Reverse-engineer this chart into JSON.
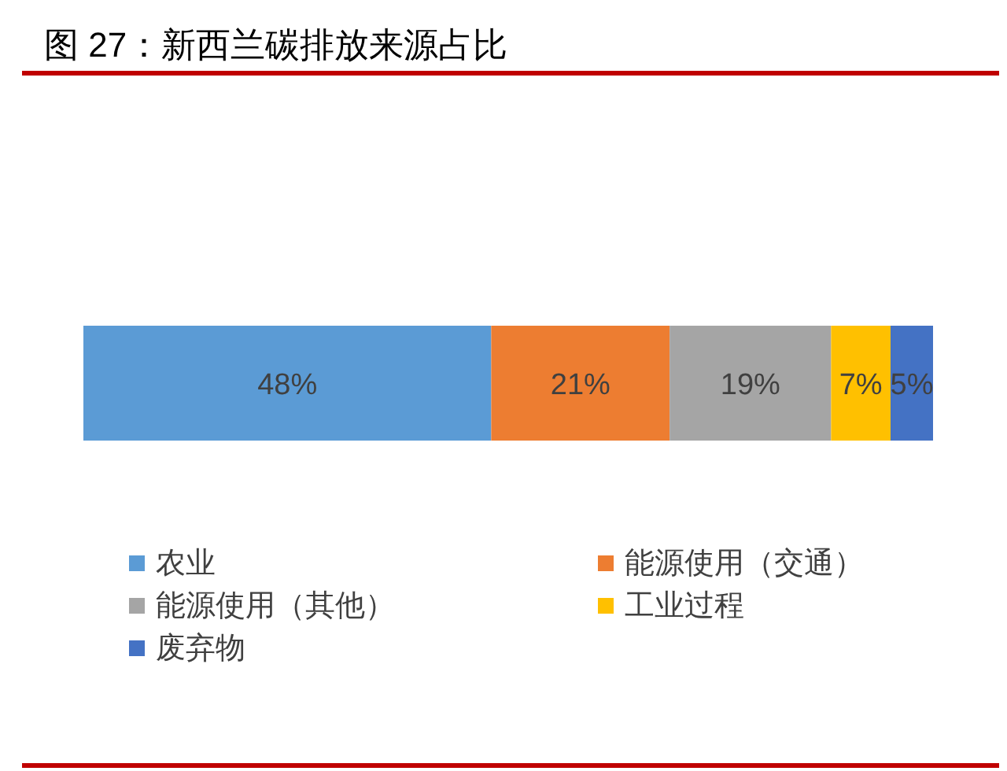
{
  "chart_data": {
    "type": "bar",
    "title": "图 27：新西兰碳排放来源占比",
    "orientation": "horizontal",
    "stacked": true,
    "categories": [
      null
    ],
    "legend": "bottom",
    "series": [
      {
        "name": "农业",
        "color": "#5b9bd5",
        "values": [
          48
        ],
        "value_labels": [
          "48%"
        ]
      },
      {
        "name": "能源使用（交通）",
        "color": "#ed7d31",
        "values": [
          21
        ],
        "value_labels": [
          "21%"
        ]
      },
      {
        "name": "能源使用（其他）",
        "color": "#a5a5a5",
        "values": [
          19
        ],
        "value_labels": [
          "19%"
        ]
      },
      {
        "name": "工业过程",
        "color": "#ffc000",
        "values": [
          7
        ],
        "value_labels": [
          "7%"
        ]
      },
      {
        "name": "废弃物",
        "color": "#4472c4",
        "values": [
          5
        ],
        "value_labels": [
          "5%"
        ]
      }
    ]
  }
}
